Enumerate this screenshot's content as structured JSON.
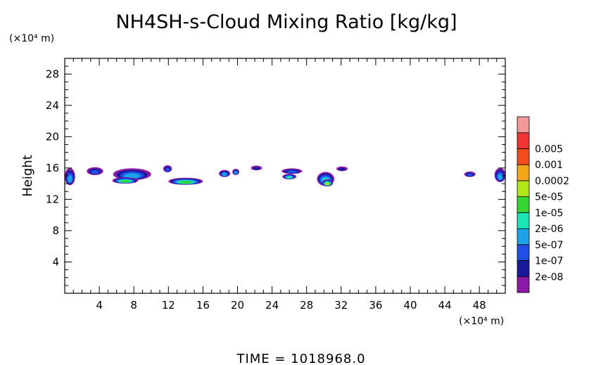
{
  "chart_data": {
    "type": "heatmap",
    "title": "NH4SH-s-Cloud Mixing Ratio [kg/kg]",
    "ylabel": "Height",
    "x_unit": "(×10⁴ m)",
    "y_unit": "(×10⁴ m)",
    "xlim": [
      0,
      51
    ],
    "ylim": [
      0,
      30
    ],
    "x_ticks": [
      4,
      8,
      12,
      16,
      20,
      24,
      28,
      32,
      36,
      40,
      44,
      48
    ],
    "y_ticks": [
      4,
      8,
      12,
      16,
      20,
      24,
      28
    ],
    "legend": {
      "placement": "right",
      "levels": [
        "2e-08",
        "1e-07",
        "5e-07",
        "2e-06",
        "1e-05",
        "5e-05",
        "0.0002",
        "0.001",
        "0.005"
      ],
      "colors": [
        "#8b1aa6",
        "#1a1a9e",
        "#1f4fe8",
        "#1aa3e8",
        "#19e6b4",
        "#33d633",
        "#b3e619",
        "#f2a619",
        "#f24d1a",
        "#f23333",
        "#f29999"
      ]
    },
    "cloud_patches": [
      {
        "x": 0.6,
        "y": 14.9,
        "w": 1.2,
        "h": 2.2,
        "level": 3
      },
      {
        "x": 3.5,
        "y": 15.6,
        "w": 1.9,
        "h": 1.0,
        "level": 2
      },
      {
        "x": 7.8,
        "y": 15.2,
        "w": 4.4,
        "h": 1.5,
        "level": 3
      },
      {
        "x": 7.0,
        "y": 14.4,
        "w": 3.0,
        "h": 0.8,
        "level": 5
      },
      {
        "x": 11.9,
        "y": 15.9,
        "w": 1.0,
        "h": 0.9,
        "level": 2
      },
      {
        "x": 14.0,
        "y": 14.3,
        "w": 4.0,
        "h": 0.9,
        "level": 5
      },
      {
        "x": 18.5,
        "y": 15.3,
        "w": 1.3,
        "h": 0.9,
        "level": 3
      },
      {
        "x": 19.8,
        "y": 15.5,
        "w": 0.8,
        "h": 0.8,
        "level": 3
      },
      {
        "x": 22.2,
        "y": 16.0,
        "w": 1.3,
        "h": 0.6,
        "level": 1
      },
      {
        "x": 26.3,
        "y": 15.6,
        "w": 2.4,
        "h": 0.7,
        "level": 2
      },
      {
        "x": 26.0,
        "y": 14.9,
        "w": 1.6,
        "h": 0.7,
        "level": 4
      },
      {
        "x": 30.2,
        "y": 14.6,
        "w": 2.0,
        "h": 1.8,
        "level": 4
      },
      {
        "x": 30.4,
        "y": 14.1,
        "w": 1.3,
        "h": 0.9,
        "level": 6
      },
      {
        "x": 32.1,
        "y": 15.9,
        "w": 1.3,
        "h": 0.6,
        "level": 1
      },
      {
        "x": 46.9,
        "y": 15.2,
        "w": 1.3,
        "h": 0.7,
        "level": 2
      },
      {
        "x": 50.4,
        "y": 15.1,
        "w": 1.3,
        "h": 1.8,
        "level": 3
      }
    ]
  },
  "footer": {
    "time_label": "TIME = 1018968.0"
  }
}
